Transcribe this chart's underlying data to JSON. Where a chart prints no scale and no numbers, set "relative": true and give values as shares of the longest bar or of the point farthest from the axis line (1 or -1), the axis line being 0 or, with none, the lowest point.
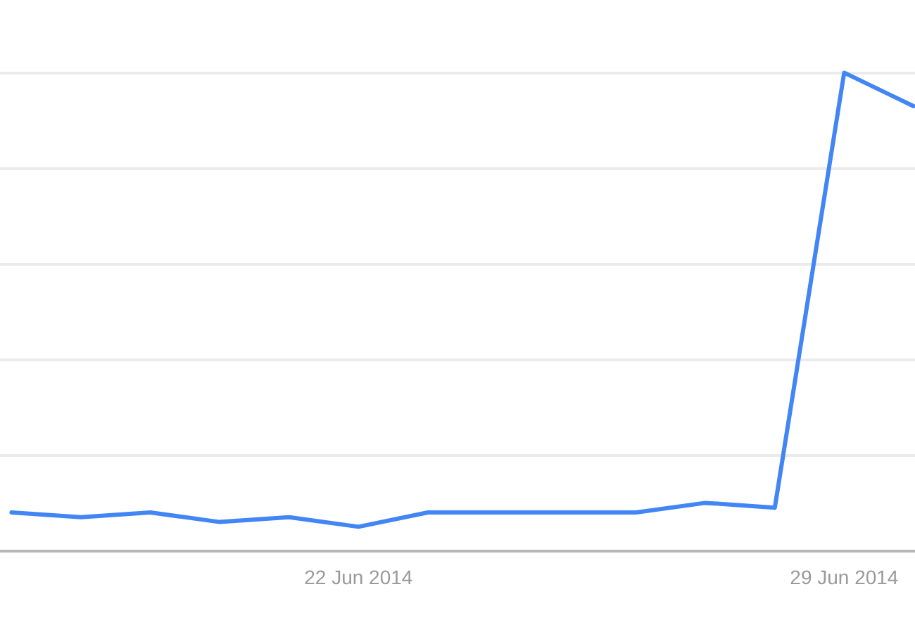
{
  "chart_data": {
    "type": "line",
    "relative": true,
    "x": [
      "2014-06-17",
      "2014-06-18",
      "2014-06-19",
      "2014-06-20",
      "2014-06-21",
      "2014-06-22",
      "2014-06-23",
      "2014-06-24",
      "2014-06-25",
      "2014-06-26",
      "2014-06-27",
      "2014-06-28",
      "2014-06-29",
      "2014-06-30"
    ],
    "series": [
      {
        "color": "#4285f4",
        "values": [
          0.08,
          0.07,
          0.08,
          0.06,
          0.07,
          0.05,
          0.08,
          0.08,
          0.08,
          0.08,
          0.1,
          0.09,
          1,
          0.93
        ]
      }
    ],
    "xlim": [
      "2014-06-16T20:00",
      "2014-06-30T00:30"
    ],
    "xticks": [
      {
        "value": "2014-06-22",
        "label": "22 Jun 2014"
      },
      {
        "value": "2014-06-29",
        "label": "29 Jun 2014"
      }
    ],
    "grid": "y",
    "tick_labels": "x",
    "marker": "none",
    "line_style": "solid"
  }
}
